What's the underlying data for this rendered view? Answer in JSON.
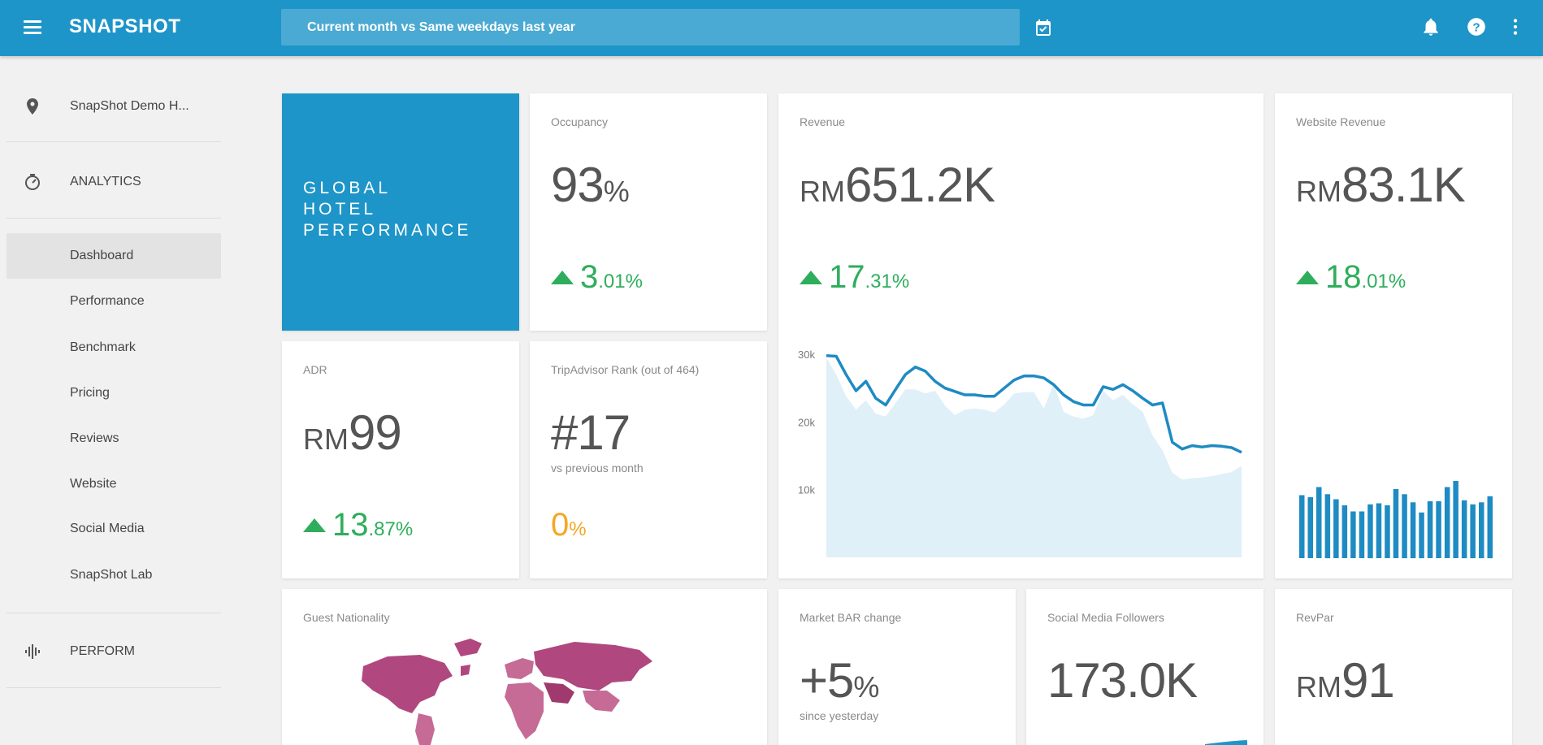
{
  "app": {
    "brand": "SNAPSHOT",
    "date_range": "Current month vs Same weekdays last year"
  },
  "sidebar": {
    "property": "SnapShot Demo H...",
    "analytics_label": "ANALYTICS",
    "items": [
      {
        "label": "Dashboard",
        "active": true
      },
      {
        "label": "Performance"
      },
      {
        "label": "Benchmark"
      },
      {
        "label": "Pricing"
      },
      {
        "label": "Reviews"
      },
      {
        "label": "Website"
      },
      {
        "label": "Social Media"
      },
      {
        "label": "SnapShot Lab"
      }
    ],
    "perform_label": "PERFORM"
  },
  "icons": {
    "menu": "hamburger-menu-icon",
    "calendar": "calendar-check-icon",
    "bell": "notification-bell-icon",
    "help": "help-circle-icon",
    "more": "more-vertical-icon",
    "location": "location-pin-icon",
    "analytics": "analytics-gauge-icon",
    "perform": "perform-waveform-icon"
  },
  "colors": {
    "brand_blue": "#1e95c8",
    "positive": "#2eae5c",
    "neutral": "#f5a623",
    "map_purple": "#b0477e"
  },
  "hero": {
    "title": "GLOBAL\nHOTEL\nPERFORMANCE"
  },
  "cards": {
    "occupancy": {
      "title": "Occupancy",
      "value": "93",
      "suffix": "%",
      "delta_int": "3",
      "delta_dec": ".01%"
    },
    "revenue": {
      "title": "Revenue",
      "prefix": "RM",
      "value": "651.2K",
      "delta_int": "17",
      "delta_dec": ".31%"
    },
    "website_revenue": {
      "title": "Website Revenue",
      "prefix": "RM",
      "value": "83.1K",
      "delta_int": "18",
      "delta_dec": ".01%"
    },
    "adr": {
      "title": "ADR",
      "prefix": "RM",
      "value": "99",
      "delta_int": "13",
      "delta_dec": ".87%"
    },
    "tripadvisor": {
      "title": "TripAdvisor Rank (out of 464)",
      "value": "#17",
      "sub": "vs previous month",
      "delta_int": "0",
      "delta_dec": "%"
    },
    "nationality": {
      "title": "Guest Nationality"
    },
    "market_bar": {
      "title": "Market BAR change",
      "value": "+5",
      "suffix": "%",
      "sub": "since yesterday"
    },
    "social": {
      "title": "Social Media Followers",
      "value": "173.0K"
    },
    "revpar": {
      "title": "RevPar",
      "prefix": "RM",
      "value": "91"
    }
  },
  "chart_data": [
    {
      "type": "area",
      "ytick_labels": [
        "30k",
        "20k",
        "10k"
      ],
      "ylim": [
        0,
        30000
      ],
      "series": [
        {
          "role": "current",
          "style": "line",
          "values": [
            29800,
            29700,
            27000,
            24600,
            26000,
            23500,
            22500,
            24800,
            27000,
            28100,
            27500,
            26000,
            25000,
            24500,
            24000,
            24000,
            23800,
            23800,
            25000,
            26200,
            26800,
            26800,
            26500,
            25500,
            24000,
            23000,
            22500,
            22500,
            25200,
            24800,
            25500,
            24600,
            23500,
            22500,
            22800,
            17000,
            16000,
            16500,
            16300,
            16500,
            16400,
            16200,
            15500
          ]
        },
        {
          "role": "comparison",
          "style": "area",
          "values": [
            29500,
            27000,
            23800,
            21800,
            23200,
            21200,
            20800,
            22800,
            24800,
            24800,
            24200,
            24600,
            22400,
            21000,
            21800,
            22000,
            21800,
            21400,
            22600,
            24200,
            24400,
            24400,
            22000,
            25600,
            21500,
            20800,
            20500,
            21000,
            24600,
            23200,
            24000,
            22600,
            21500,
            18000,
            15800,
            12500,
            11500,
            11700,
            11800,
            12000,
            12300,
            12600,
            13500
          ]
        }
      ]
    },
    {
      "type": "bar",
      "values": [
        62,
        60,
        70,
        63,
        58,
        52,
        46,
        46,
        53,
        54,
        52,
        68,
        63,
        55,
        45,
        56,
        56,
        70,
        76,
        57,
        53,
        55,
        61
      ]
    }
  ]
}
